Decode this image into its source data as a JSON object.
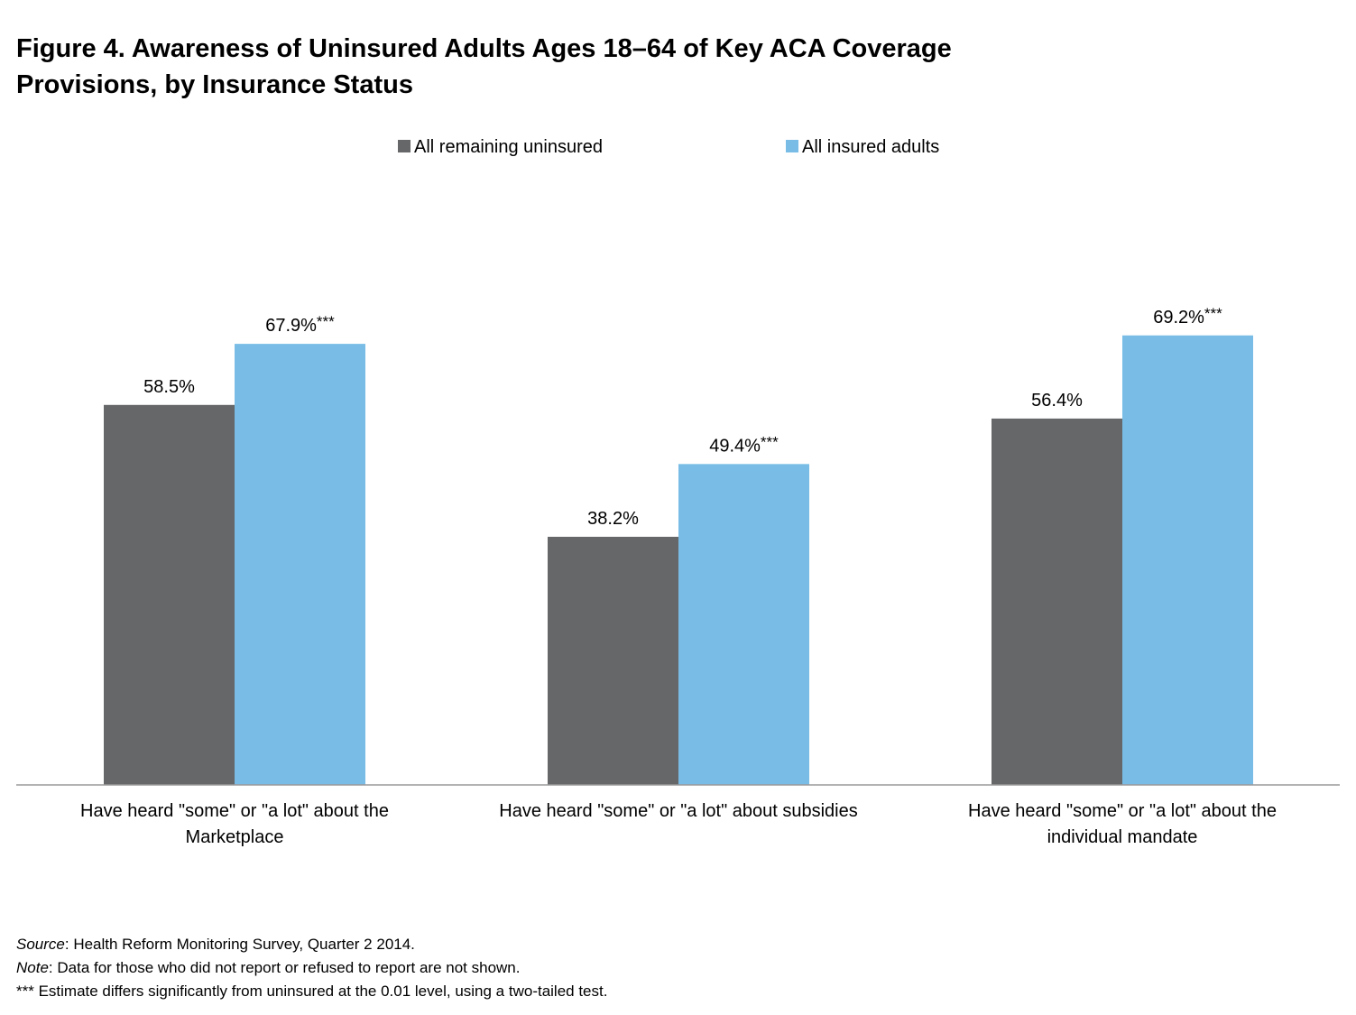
{
  "title_lines": [
    "Figure 4. Awareness of Uninsured Adults Ages 18–64 of Key ACA Coverage",
    "Provisions, by Insurance Status"
  ],
  "chart_data": {
    "type": "bar",
    "categories": [
      [
        "Have heard \"some\" or \"a lot\" about the",
        "Marketplace"
      ],
      [
        "Have heard \"some\" or \"a lot\" about subsidies"
      ],
      [
        "Have heard \"some\" or \"a lot\" about the",
        "individual mandate"
      ]
    ],
    "series": [
      {
        "name": "All remaining uninsured",
        "color": "#666769",
        "values": [
          58.5,
          38.2,
          56.4
        ],
        "labels": [
          "58.5%",
          "38.2%",
          "56.4%"
        ],
        "markers": [
          "",
          "",
          ""
        ]
      },
      {
        "name": "All insured adults",
        "color": "#79bde6",
        "values": [
          67.9,
          49.4,
          69.2
        ],
        "labels": [
          "67.9%",
          "49.4%",
          "69.2%"
        ],
        "markers": [
          "***",
          "***",
          "***"
        ]
      }
    ],
    "ylim": [
      0,
      80
    ],
    "grid": false,
    "legend_position": "top-center",
    "xlabel": "",
    "ylabel": ""
  },
  "footer": {
    "source_label": "Source",
    "source_text": ": Health Reform Monitoring Survey, Quarter 2 2014.",
    "note_label": "Note",
    "note_text": ": Data for those who did not report or refused to report are not shown.",
    "significance_text": "*** Estimate differs significantly from uninsured  at the 0.01 level, using a two-tailed test."
  }
}
